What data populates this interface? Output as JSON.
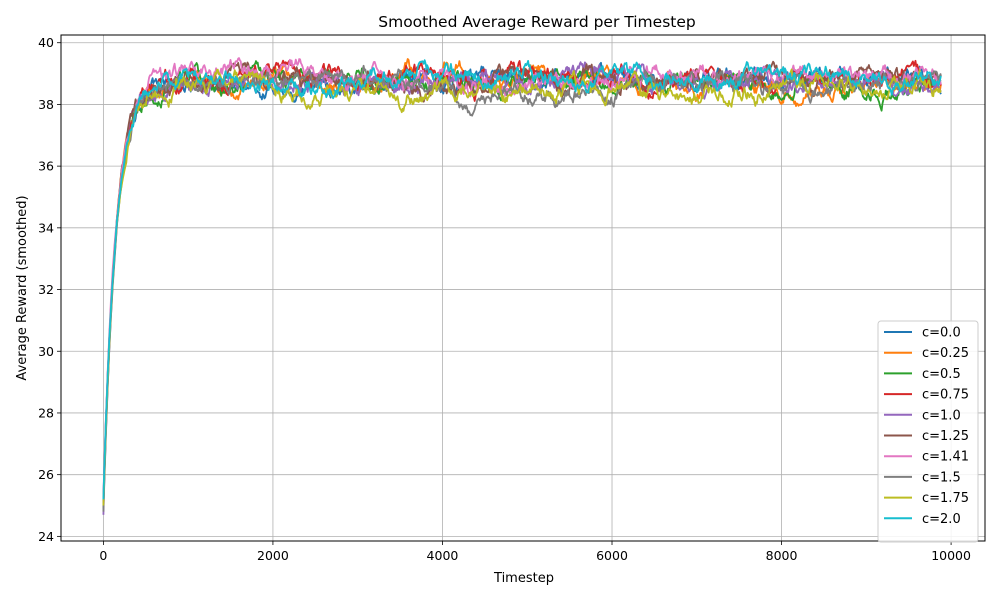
{
  "chart_data": {
    "type": "line",
    "title": "Smoothed Average Reward per Timestep",
    "xlabel": "Timestep",
    "ylabel": "Average Reward (smoothed)",
    "xlim": [
      -500,
      10400
    ],
    "ylim": [
      23.85,
      40.25
    ],
    "xticks": [
      0,
      2000,
      4000,
      6000,
      8000,
      10000
    ],
    "yticks": [
      24,
      26,
      28,
      30,
      32,
      34,
      36,
      38,
      40
    ],
    "grid": true,
    "legend_position": "lower-right",
    "x_range": [
      0,
      9880
    ],
    "x_step": 10,
    "series": [
      {
        "name": "c=0.0",
        "color": "#1f77b4",
        "start": 25.2,
        "plateau": 38.8,
        "seed": 11
      },
      {
        "name": "c=0.25",
        "color": "#ff7f0e",
        "start": 25.0,
        "plateau": 38.75,
        "seed": 23
      },
      {
        "name": "c=0.5",
        "color": "#2ca02c",
        "start": 24.9,
        "plateau": 38.7,
        "seed": 37
      },
      {
        "name": "c=0.75",
        "color": "#d62728",
        "start": 25.1,
        "plateau": 38.85,
        "seed": 41
      },
      {
        "name": "c=1.0",
        "color": "#9467bd",
        "start": 24.7,
        "plateau": 38.75,
        "seed": 53
      },
      {
        "name": "c=1.25",
        "color": "#8c564b",
        "start": 25.0,
        "plateau": 38.8,
        "seed": 67
      },
      {
        "name": "c=1.41",
        "color": "#e377c2",
        "start": 25.3,
        "plateau": 38.95,
        "seed": 71
      },
      {
        "name": "c=1.5",
        "color": "#7f7f7f",
        "start": 24.8,
        "plateau": 38.6,
        "seed": 83
      },
      {
        "name": "c=1.75",
        "color": "#bcbd22",
        "start": 25.0,
        "plateau": 38.55,
        "seed": 97
      },
      {
        "name": "c=2.0",
        "color": "#17becf",
        "start": 25.2,
        "plateau": 38.85,
        "seed": 101
      }
    ]
  }
}
